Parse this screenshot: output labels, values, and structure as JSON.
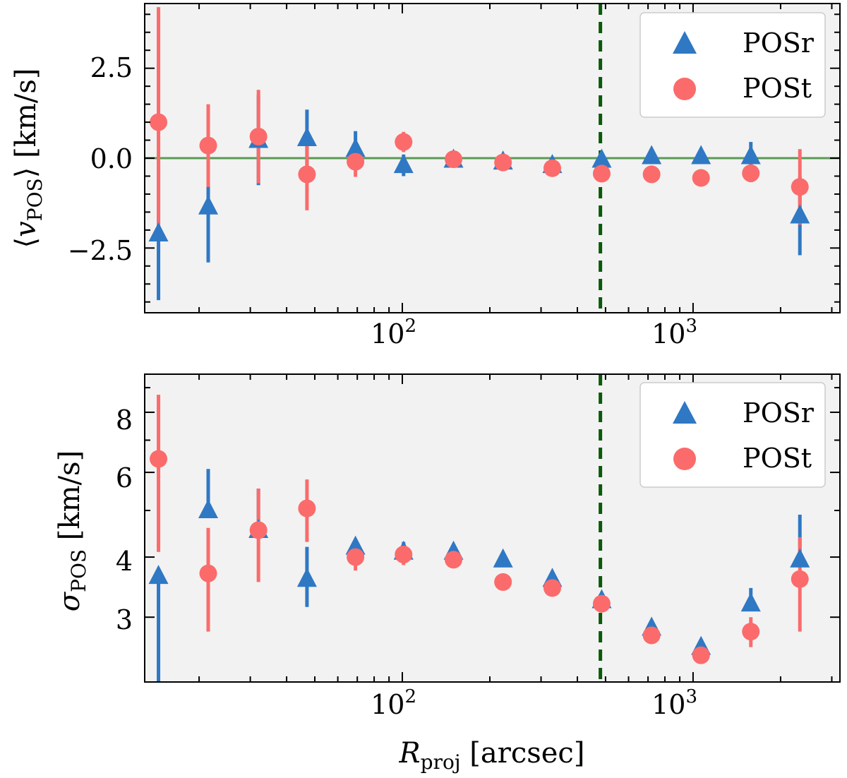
{
  "chart_data": [
    {
      "type": "scatter",
      "id": "top",
      "ylabel_parts": {
        "open": "⟨",
        "main": "v",
        "sub": "POS",
        "close": "⟩",
        "unit": " [km/s]"
      },
      "xlabel": "",
      "xscale": "log",
      "xlim": [
        13,
        3200
      ],
      "ylim": [
        -4.3,
        4.3
      ],
      "yticks": [
        -2.5,
        0.0,
        2.5
      ],
      "ytick_labels": [
        "−2.5",
        "0.0",
        "2.5"
      ],
      "xtick_major": [
        100,
        1000
      ],
      "xtick_labels": [
        {
          "base": "10",
          "exp": "2"
        },
        {
          "base": "10",
          "exp": "3"
        }
      ],
      "hline": 0,
      "vline": 480,
      "legend": {
        "position": "top-right"
      },
      "series": [
        {
          "name": "POSr",
          "marker": "triangle",
          "x": [
            14.5,
            21.5,
            32,
            47,
            69,
            101,
            150,
            222,
            328,
            485,
            720,
            1065,
            1580,
            2330
          ],
          "y": [
            -2.1,
            -1.35,
            0.5,
            0.55,
            0.25,
            -0.2,
            -0.05,
            -0.1,
            -0.2,
            -0.05,
            0.05,
            0.05,
            0.05,
            -1.6
          ],
          "err": [
            1.85,
            1.55,
            1.25,
            0.8,
            0.5,
            0.3,
            0.15,
            0.2,
            0.2,
            0.15,
            0.15,
            0.15,
            0.4,
            1.1
          ]
        },
        {
          "name": "POSt",
          "marker": "circle",
          "x": [
            14.5,
            21.5,
            32,
            47,
            69,
            101,
            150,
            222,
            328,
            485,
            720,
            1065,
            1580,
            2330
          ],
          "y": [
            1.0,
            0.35,
            0.6,
            -0.45,
            -0.1,
            0.45,
            -0.03,
            -0.12,
            -0.28,
            -0.43,
            -0.45,
            -0.55,
            -0.42,
            -0.8
          ],
          "err": [
            3.2,
            1.15,
            1.3,
            1.0,
            0.42,
            0.28,
            0.12,
            0.12,
            0.12,
            0.12,
            0.1,
            0.1,
            0.25,
            1.05
          ]
        }
      ]
    },
    {
      "type": "scatter",
      "id": "bottom",
      "ylabel_parts": {
        "main": "σ",
        "sub": "POS",
        "unit": " [km/s]"
      },
      "xlabel_parts": {
        "main": "R",
        "sub": "proj",
        "unit": " [arcsec]"
      },
      "xscale": "log",
      "yscale": "log",
      "xlim": [
        13,
        3200
      ],
      "ylim": [
        2.2,
        9.6
      ],
      "yticks": [
        3,
        4,
        6,
        8
      ],
      "ytick_labels": [
        "3",
        "4",
        "6",
        "8"
      ],
      "xtick_major": [
        100,
        1000
      ],
      "xtick_labels": [
        {
          "base": "10",
          "exp": "2"
        },
        {
          "base": "10",
          "exp": "3"
        }
      ],
      "vline": 480,
      "legend": {
        "position": "top-right"
      },
      "series": [
        {
          "name": "POSr",
          "marker": "triangle",
          "x": [
            14.5,
            21.5,
            32,
            47,
            69,
            101,
            150,
            222,
            328,
            485,
            720,
            1065,
            1580,
            2330
          ],
          "y": [
            3.65,
            5.0,
            4.55,
            3.6,
            4.2,
            4.1,
            4.1,
            3.95,
            3.6,
            3.25,
            2.85,
            2.6,
            3.2,
            3.95
          ],
          "err_lo": [
            1.45,
            0.0,
            0.0,
            0.45,
            0.0,
            0.0,
            0.0,
            0.0,
            0.0,
            0.0,
            0.0,
            0.0,
            0.0,
            0.0
          ],
          "err_hi": [
            0.0,
            1.1,
            1.0,
            0.6,
            0.15,
            0.2,
            0.1,
            0.1,
            0.1,
            0.12,
            0.05,
            0.1,
            0.25,
            0.95
          ]
        },
        {
          "name": "POSt",
          "marker": "circle",
          "x": [
            14.5,
            21.5,
            32,
            47,
            69,
            101,
            150,
            222,
            328,
            485,
            720,
            1065,
            1580,
            2330
          ],
          "y": [
            6.4,
            3.7,
            4.55,
            5.05,
            4.0,
            4.05,
            3.95,
            3.55,
            3.45,
            3.2,
            2.75,
            2.5,
            2.8,
            3.6
          ],
          "err": [
            2.3,
            0.9,
            1.0,
            0.75,
            0.25,
            0.2,
            0.1,
            0.1,
            0.1,
            0.1,
            0.08,
            0.08,
            0.2,
            0.8
          ]
        }
      ]
    }
  ],
  "colors": {
    "posr": "#2f78c4",
    "post": "#fb6b6b",
    "panel_bg": "#f2f2f2",
    "hline": "#5a9a55",
    "vline": "#0a5a0a",
    "legend_bg": "#ffffff",
    "legend_border": "#cccccc"
  }
}
